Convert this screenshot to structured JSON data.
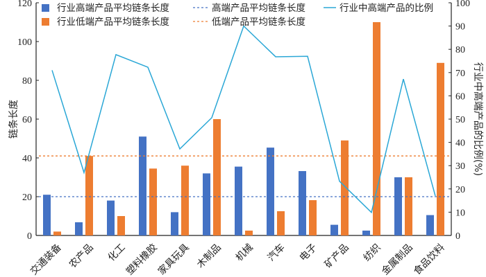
{
  "chart_data": {
    "type": "bar",
    "title": "",
    "categories": [
      "交通装备",
      "农产品",
      "化工",
      "塑料橡胶",
      "家具玩具",
      "木制品",
      "机械",
      "汽车",
      "电子",
      "矿产品",
      "纺织",
      "金属制品",
      "食品饮料"
    ],
    "series": [
      {
        "name": "行业高端产品平均链条长度",
        "type": "bar",
        "axis": "left",
        "color": "#4472c4",
        "values": [
          21,
          6.8,
          18,
          51,
          12,
          32,
          35.5,
          45.3,
          33.2,
          5.5,
          2.5,
          30,
          10.5
        ]
      },
      {
        "name": "行业低端产品平均链条长度",
        "type": "bar",
        "axis": "left",
        "color": "#ed7d31",
        "values": [
          2,
          41,
          10,
          34.5,
          36,
          60,
          2.5,
          12.5,
          18.2,
          49,
          110,
          30,
          89
        ]
      },
      {
        "name": "高端产品平均链条长度",
        "type": "hline",
        "axis": "left",
        "color": "#4472c4",
        "value": 20
      },
      {
        "name": "低端产品平均链条长度",
        "type": "hline",
        "axis": "left",
        "color": "#ed7d31",
        "value": 41
      },
      {
        "name": "行业中高端产品的比例",
        "type": "line",
        "axis": "right",
        "color": "#2aa7d6",
        "values": [
          71,
          27,
          77.7,
          72.3,
          37.2,
          50.6,
          90,
          76.8,
          77,
          23.3,
          9.9,
          67.2,
          17
        ]
      }
    ],
    "ylabel": "链条长度",
    "ylabel_right": "行业中高端产品的比例(%)",
    "ylim": [
      0,
      120
    ],
    "ylim_right": [
      0,
      100
    ],
    "yticks": [
      "0",
      "20",
      "40",
      "60",
      "80",
      "100",
      "120"
    ],
    "yticks_right": [
      "0",
      "10",
      "20",
      "30",
      "40",
      "50",
      "60",
      "70",
      "80",
      "90",
      "100"
    ],
    "grid": false,
    "legend_placement": "top"
  }
}
